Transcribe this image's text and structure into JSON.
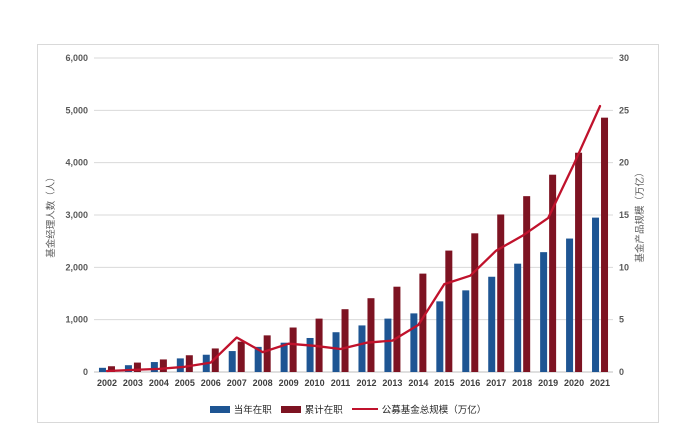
{
  "page": {
    "background": "#ffffff",
    "frame_border": "#d9d9d9"
  },
  "chart_data": {
    "type": "bar",
    "subtype": "dual-axis bar + line combo",
    "categories": [
      "2002",
      "2003",
      "2004",
      "2005",
      "2006",
      "2007",
      "2008",
      "2009",
      "2010",
      "2011",
      "2012",
      "2013",
      "2014",
      "2015",
      "2016",
      "2017",
      "2018",
      "2019",
      "2020",
      "2021"
    ],
    "series": [
      {
        "name": "当年在职",
        "type": "bar",
        "axis": "left",
        "color": "#1e5593",
        "values": [
          80,
          130,
          190,
          260,
          330,
          400,
          480,
          560,
          650,
          760,
          890,
          1020,
          1120,
          1350,
          1560,
          1820,
          2070,
          2290,
          2550,
          2950
        ]
      },
      {
        "name": "累计在职",
        "type": "bar",
        "axis": "left",
        "color": "#7d1322",
        "values": [
          110,
          180,
          240,
          320,
          450,
          580,
          700,
          850,
          1020,
          1200,
          1410,
          1630,
          1880,
          2320,
          2650,
          3010,
          3360,
          3770,
          4190,
          4860
        ]
      },
      {
        "name": "公募基金总规模（万亿）",
        "type": "line",
        "axis": "right",
        "color": "#c0122c",
        "values": [
          0.1,
          0.2,
          0.3,
          0.5,
          0.9,
          3.3,
          1.9,
          2.7,
          2.5,
          2.2,
          2.8,
          3.0,
          4.5,
          8.4,
          9.2,
          11.6,
          13.0,
          14.7,
          19.9,
          25.4
        ]
      }
    ],
    "left_axis": {
      "title": "基金经理人数（人）",
      "min": 0,
      "max": 6000,
      "tick_labels": [
        "0",
        "1,000",
        "2,000",
        "3,000",
        "4,000",
        "5,000",
        "6,000"
      ]
    },
    "right_axis": {
      "title": "基金产品规模（万亿）",
      "min": 0,
      "max": 30,
      "tick_labels": [
        "0",
        "5",
        "10",
        "15",
        "20",
        "25",
        "30"
      ]
    },
    "grid": true,
    "legend_position": "bottom",
    "style": {
      "grid_color": "#d9d9d9",
      "axis_line_color": "#bfbfbf",
      "tick_text_color": "#595959",
      "category_text_color": "#404040",
      "axis_title_color": "#595959",
      "legend_text_color": "#262626"
    }
  }
}
